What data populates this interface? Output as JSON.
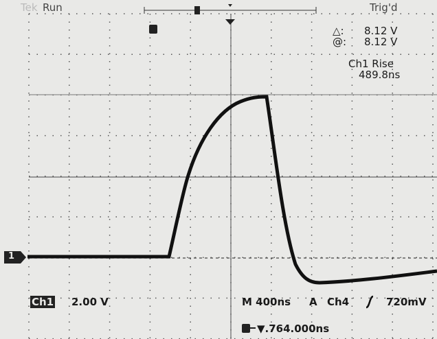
{
  "header": {
    "brand": "Tek",
    "status": "Run",
    "trigger_state": "Trig'd"
  },
  "cursor_readout": {
    "delta_label": "△:",
    "delta_value": "8.12 V",
    "at_label": "@:",
    "at_value": "8.12 V"
  },
  "measurement": {
    "name": "Ch1 Rise",
    "value": "489.8ns"
  },
  "channel_marker": "1",
  "footer": {
    "channel": "Ch1",
    "scale": "2.00 V",
    "timebase": "M 400ns",
    "trigger_mode": "A",
    "trigger_source": "Ch4",
    "trigger_level": "720mV",
    "trigger_position": "▼.764.000ns"
  }
}
